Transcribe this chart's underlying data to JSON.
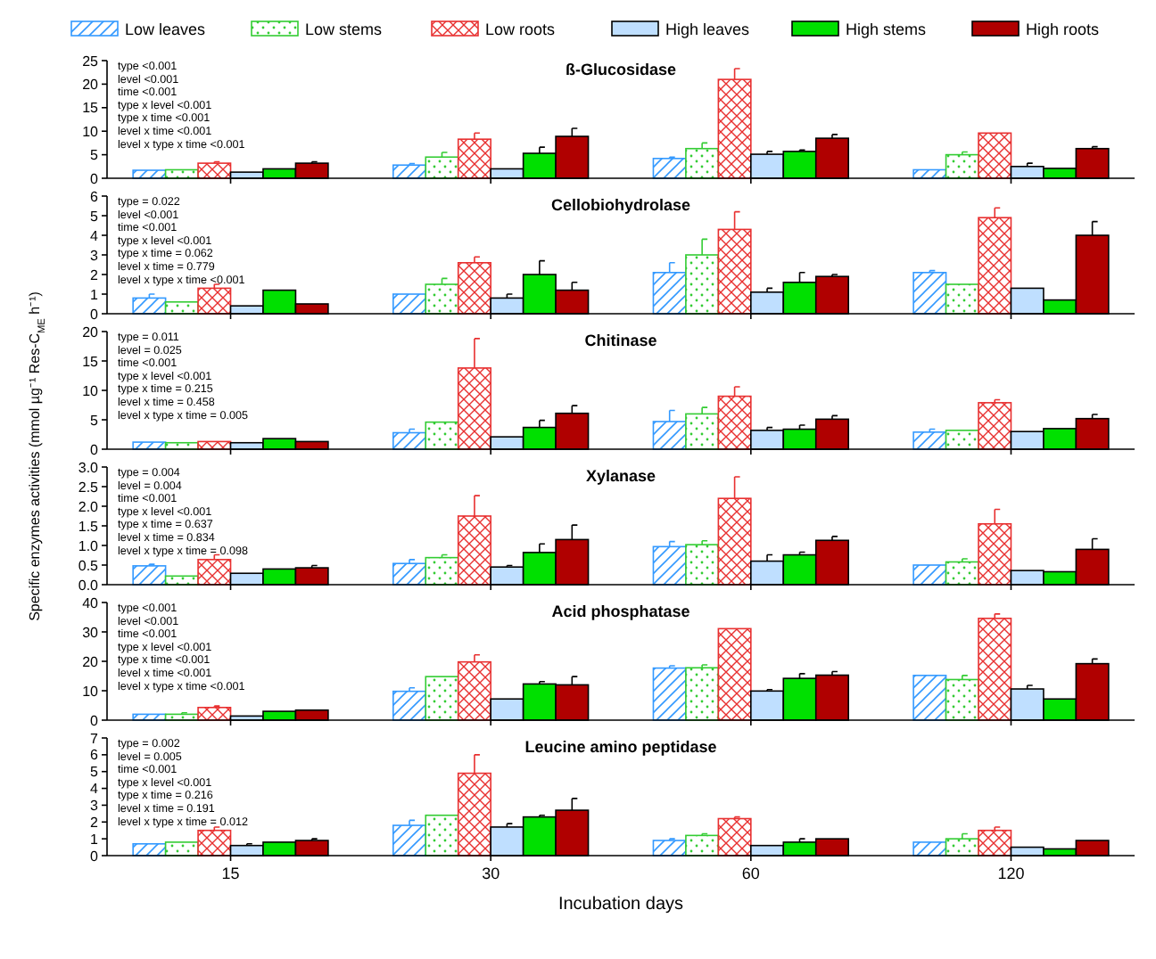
{
  "chart_data": [
    {
      "type": "bar",
      "title": "ß-Glucosidase",
      "categories": [
        "15",
        "30",
        "60",
        "120"
      ],
      "legend": "top",
      "tick_labels": "y",
      "ylim": [
        0,
        25
      ],
      "yticks": [
        0,
        5,
        10,
        15,
        20,
        25
      ],
      "annotations": [
        "type <0.001",
        "level <0.001",
        "time <0.001",
        "type x level <0.001",
        "type x time <0.001",
        "level x time <0.001",
        "level x type x time <0.001"
      ],
      "series": [
        {
          "name": "Low leaves",
          "color": "#3399ff",
          "values": [
            1.7,
            2.8,
            4.2,
            1.8
          ],
          "errors": [
            null,
            0.3,
            0.3,
            null
          ]
        },
        {
          "name": "Low stems",
          "color": "#33cc33",
          "values": [
            1.8,
            4.5,
            6.3,
            5.0
          ],
          "errors": [
            null,
            1.0,
            1.2,
            0.6
          ]
        },
        {
          "name": "Low roots",
          "color": "#e83030",
          "values": [
            3.2,
            8.3,
            21.0,
            9.6
          ],
          "errors": [
            0.3,
            1.3,
            2.3,
            null
          ]
        },
        {
          "name": "High leaves",
          "color": "#bfdfff",
          "values": [
            1.3,
            2.0,
            5.1,
            2.5
          ],
          "errors": [
            null,
            null,
            0.6,
            0.7
          ]
        },
        {
          "name": "High stems",
          "color": "#00e000",
          "values": [
            2.0,
            5.3,
            5.7,
            2.1
          ],
          "errors": [
            null,
            1.3,
            0.3,
            null
          ]
        },
        {
          "name": "High roots",
          "color": "#b00000",
          "values": [
            3.2,
            8.9,
            8.5,
            6.3
          ],
          "errors": [
            0.3,
            1.7,
            0.8,
            0.4
          ]
        }
      ]
    },
    {
      "type": "bar",
      "title": "Cellobiohydrolase",
      "categories": [
        "15",
        "30",
        "60",
        "120"
      ],
      "tick_labels": "y",
      "ylim": [
        0,
        6
      ],
      "yticks": [
        0,
        1,
        2,
        3,
        4,
        5,
        6
      ],
      "annotations": [
        "type = 0.022",
        "level <0.001",
        "time <0.001",
        "type x level <0.001",
        "type x time = 0.062",
        "level x time = 0.779",
        "level x type x time <0.001"
      ],
      "series": [
        {
          "color": "#3399ff",
          "values": [
            0.8,
            1.0,
            2.1,
            2.1
          ],
          "errors": [
            0.2,
            null,
            0.5,
            0.1
          ]
        },
        {
          "color": "#33cc33",
          "values": [
            0.6,
            1.5,
            3.0,
            1.5
          ],
          "errors": [
            null,
            0.3,
            0.8,
            null
          ]
        },
        {
          "color": "#e83030",
          "values": [
            1.3,
            2.6,
            4.3,
            4.9
          ],
          "errors": [
            0.2,
            0.3,
            0.9,
            0.5
          ]
        },
        {
          "color": "#bfdfff",
          "values": [
            0.4,
            0.8,
            1.1,
            1.3
          ],
          "errors": [
            null,
            0.2,
            0.2,
            null
          ]
        },
        {
          "color": "#00e000",
          "values": [
            1.2,
            2.0,
            1.6,
            0.7
          ],
          "errors": [
            null,
            0.7,
            0.5,
            null
          ]
        },
        {
          "color": "#b00000",
          "values": [
            0.5,
            1.2,
            1.9,
            4.0
          ],
          "errors": [
            null,
            0.4,
            0.1,
            0.7
          ]
        }
      ]
    },
    {
      "type": "bar",
      "title": "Chitinase",
      "categories": [
        "15",
        "30",
        "60",
        "120"
      ],
      "tick_labels": "y",
      "ylim": [
        0,
        20
      ],
      "yticks": [
        0,
        5,
        10,
        15,
        20
      ],
      "ylabel": "Specific enzymes activities (mmol µg⁻¹ Res-C$_{ME}$ h⁻¹)",
      "annotations": [
        "type = 0.011",
        "level = 0.025",
        "time <0.001",
        "type x level <0.001",
        "type x time = 0.215",
        "level x time = 0.458",
        "level x type x time = 0.005"
      ],
      "series": [
        {
          "color": "#3399ff",
          "values": [
            1.2,
            2.8,
            4.7,
            2.9
          ],
          "errors": [
            null,
            0.6,
            1.9,
            0.5
          ]
        },
        {
          "color": "#33cc33",
          "values": [
            1.1,
            4.6,
            6.0,
            3.2
          ],
          "errors": [
            null,
            null,
            1.1,
            null
          ]
        },
        {
          "color": "#e83030",
          "values": [
            1.3,
            13.8,
            9.0,
            7.9
          ],
          "errors": [
            null,
            5.0,
            1.6,
            0.5
          ]
        },
        {
          "color": "#bfdfff",
          "values": [
            1.1,
            2.1,
            3.2,
            3.0
          ],
          "errors": [
            null,
            null,
            0.5,
            null
          ]
        },
        {
          "color": "#00e000",
          "values": [
            1.8,
            3.7,
            3.4,
            3.5
          ],
          "errors": [
            null,
            1.2,
            0.7,
            null
          ]
        },
        {
          "color": "#b00000",
          "values": [
            1.3,
            6.1,
            5.1,
            5.2
          ],
          "errors": [
            null,
            1.3,
            0.6,
            0.7
          ]
        }
      ]
    },
    {
      "type": "bar",
      "title": "Xylanase",
      "categories": [
        "15",
        "30",
        "60",
        "120"
      ],
      "tick_labels": "y",
      "ylim": [
        0,
        3
      ],
      "yticks": [
        {
          "value": 0,
          "label": "0.0"
        },
        0.5,
        {
          "value": 1,
          "label": "1.0"
        },
        1.5,
        {
          "value": 2,
          "label": "2.0"
        },
        2.5,
        {
          "value": 3,
          "label": "3.0"
        }
      ],
      "annotations": [
        "type = 0.004",
        "level = 0.004",
        "time <0.001",
        "type x level <0.001",
        "type x time = 0.637",
        "level x time = 0.834",
        "level x type x time = 0.098"
      ],
      "series": [
        {
          "color": "#3399ff",
          "values": [
            0.48,
            0.54,
            0.97,
            0.5
          ],
          "errors": [
            0.04,
            0.1,
            0.13,
            null
          ]
        },
        {
          "color": "#33cc33",
          "values": [
            0.22,
            0.69,
            1.02,
            0.58
          ],
          "errors": [
            null,
            0.07,
            0.1,
            0.08
          ]
        },
        {
          "color": "#e83030",
          "values": [
            0.64,
            1.75,
            2.2,
            1.55
          ],
          "errors": [
            0.12,
            0.52,
            0.55,
            0.37
          ]
        },
        {
          "color": "#bfdfff",
          "values": [
            0.29,
            0.45,
            0.6,
            0.36
          ],
          "errors": [
            null,
            0.04,
            0.16,
            null
          ]
        },
        {
          "color": "#00e000",
          "values": [
            0.4,
            0.82,
            0.76,
            0.33
          ],
          "errors": [
            null,
            0.22,
            0.07,
            null
          ]
        },
        {
          "color": "#b00000",
          "values": [
            0.43,
            1.15,
            1.13,
            0.9
          ],
          "errors": [
            0.06,
            0.37,
            0.1,
            0.27
          ]
        }
      ]
    },
    {
      "type": "bar",
      "title": "Acid phosphatase",
      "categories": [
        "15",
        "30",
        "60",
        "120"
      ],
      "tick_labels": "y",
      "ylim": [
        0,
        40
      ],
      "yticks": [
        0,
        10,
        20,
        30,
        40
      ],
      "annotations": [
        "type <0.001",
        "level <0.001",
        "time <0.001",
        "type x level <0.001",
        "type x time <0.001",
        "level x time <0.001",
        "level x type x time <0.001"
      ],
      "series": [
        {
          "color": "#3399ff",
          "values": [
            2.0,
            9.8,
            17.7,
            15.2
          ],
          "errors": [
            null,
            1.2,
            0.8,
            null
          ]
        },
        {
          "color": "#33cc33",
          "values": [
            2.0,
            14.8,
            17.8,
            13.8
          ],
          "errors": [
            0.5,
            null,
            1.0,
            1.4
          ]
        },
        {
          "color": "#e83030",
          "values": [
            4.3,
            19.8,
            31.1,
            34.6
          ],
          "errors": [
            0.5,
            2.4,
            null,
            1.5
          ]
        },
        {
          "color": "#bfdfff",
          "values": [
            1.4,
            7.2,
            9.9,
            10.6
          ],
          "errors": [
            null,
            null,
            0.5,
            1.2
          ]
        },
        {
          "color": "#00e000",
          "values": [
            3.0,
            12.3,
            14.2,
            7.2
          ],
          "errors": [
            null,
            0.8,
            1.6,
            null
          ]
        },
        {
          "color": "#b00000",
          "values": [
            3.4,
            12.0,
            15.3,
            19.2
          ],
          "errors": [
            null,
            2.8,
            1.2,
            1.6
          ]
        }
      ]
    },
    {
      "type": "bar",
      "title": "Leucine amino peptidase",
      "categories": [
        "15",
        "30",
        "60",
        "120"
      ],
      "xlabel": "Incubation days",
      "ylim": [
        0,
        7
      ],
      "yticks": [
        0,
        1,
        2,
        3,
        4,
        5,
        6,
        7
      ],
      "annotations": [
        "type = 0.002",
        "level = 0.005",
        "time <0.001",
        "type x level <0.001",
        "type x time = 0.216",
        "level x time = 0.191",
        "level x type x time = 0.012"
      ],
      "series": [
        {
          "color": "#3399ff",
          "values": [
            0.7,
            1.8,
            0.9,
            0.8
          ],
          "errors": [
            null,
            0.3,
            0.1,
            null
          ]
        },
        {
          "color": "#33cc33",
          "values": [
            0.8,
            2.4,
            1.2,
            1.0
          ],
          "errors": [
            null,
            null,
            0.1,
            0.3
          ]
        },
        {
          "color": "#e83030",
          "values": [
            1.5,
            4.9,
            2.2,
            1.5
          ],
          "errors": [
            0.2,
            1.1,
            0.1,
            0.2
          ]
        },
        {
          "color": "#bfdfff",
          "values": [
            0.6,
            1.7,
            0.6,
            0.5
          ],
          "errors": [
            0.1,
            0.2,
            null,
            null
          ]
        },
        {
          "color": "#00e000",
          "values": [
            0.8,
            2.3,
            0.8,
            0.4
          ],
          "errors": [
            null,
            0.1,
            0.2,
            null
          ]
        },
        {
          "color": "#b00000",
          "values": [
            0.9,
            2.7,
            1.0,
            0.9
          ],
          "errors": [
            0.1,
            0.7,
            null,
            null
          ]
        }
      ]
    }
  ]
}
